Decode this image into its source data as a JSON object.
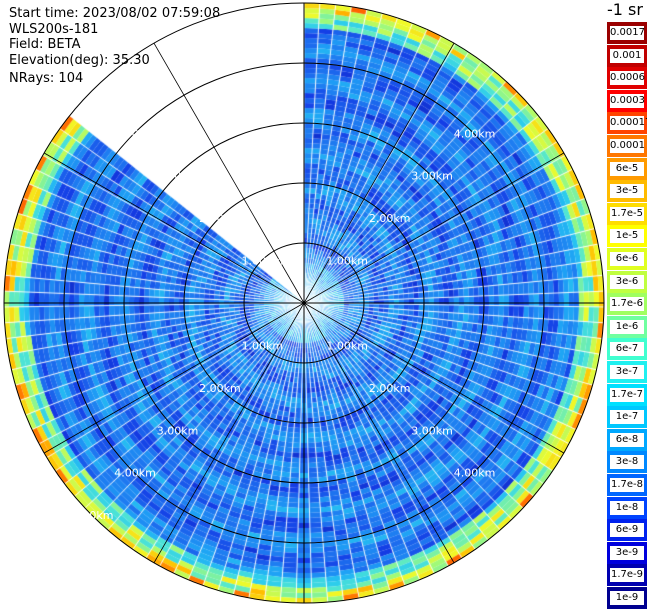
{
  "info": {
    "start_time": "Start time: 2023/08/02 07:59:08",
    "instrument": "WLS200s-181",
    "field": "Field: BETA",
    "elevation": "Elevation(deg): 35.30",
    "nrays": "NRays: 104"
  },
  "colorbar": {
    "title": "-1 sr",
    "labels": [
      "0.0017",
      "0.001",
      "0.0006",
      "0.0003",
      "0.00017",
      "0.0001",
      "6e-5",
      "3e-5",
      "1.7e-5",
      "1e-5",
      "6e-6",
      "3e-6",
      "1.7e-6",
      "1e-6",
      "6e-7",
      "3e-7",
      "1.7e-7",
      "1e-7",
      "6e-8",
      "3e-8",
      "1.7e-8",
      "1e-8",
      "6e-9",
      "3e-9",
      "1.7e-9",
      "1e-9"
    ],
    "colors": [
      "#9a0000",
      "#c00000",
      "#e00000",
      "#ff0000",
      "#ff4400",
      "#ff7700",
      "#ff9a00",
      "#ffbb00",
      "#ffdd00",
      "#ffff00",
      "#e0ff20",
      "#c0ff40",
      "#a0ff60",
      "#70ffa0",
      "#40ffd0",
      "#20f0f0",
      "#00e0ff",
      "#00c8ff",
      "#00a8ff",
      "#0088ff",
      "#0066ff",
      "#0044ff",
      "#0022ee",
      "#0000dd",
      "#0000b0",
      "#000090"
    ]
  },
  "chart_data": {
    "type": "heatmap",
    "projection": "polar PPI",
    "field": "BETA",
    "units": "sr-1",
    "elevation_deg": 35.3,
    "n_rays": 104,
    "range_rings_km": [
      1,
      2,
      3,
      4,
      5
    ],
    "range_labels": [
      "1.00km",
      "2.00km",
      "3.00km",
      "4.00km",
      "5.00km"
    ],
    "missing_sector_deg": [
      -50,
      0
    ],
    "gridlines_deg": [
      30,
      60,
      90,
      120,
      150,
      180,
      210,
      240,
      270,
      300,
      330
    ],
    "value_range": [
      1e-09,
      0.0017
    ]
  }
}
